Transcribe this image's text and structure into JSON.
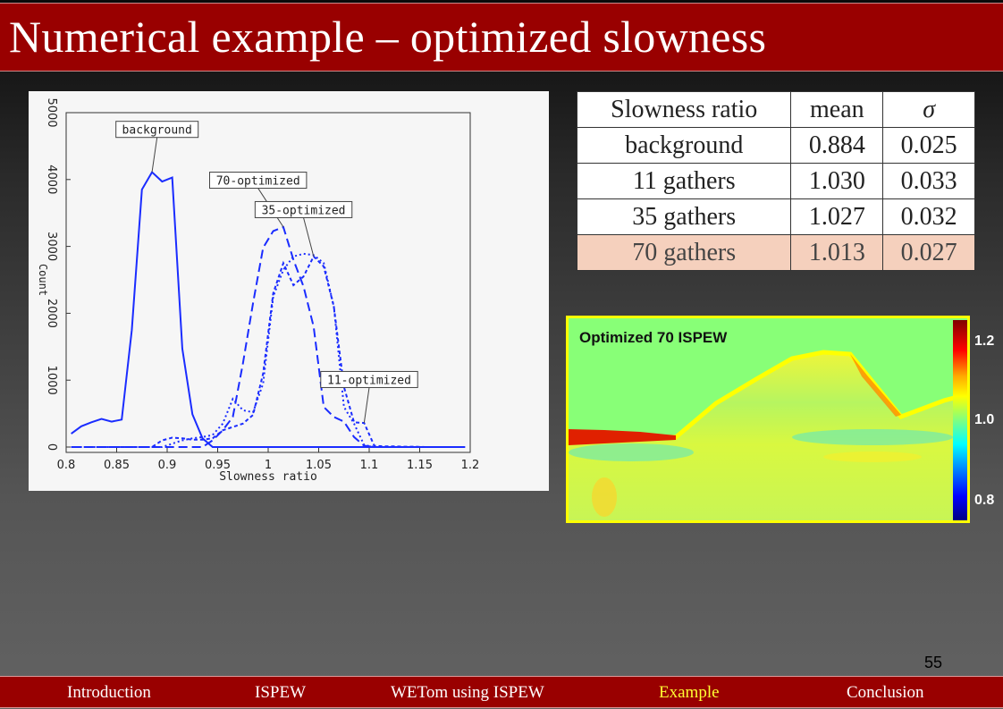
{
  "slide": {
    "title": "Numerical example – optimized slowness",
    "page_number": "55"
  },
  "table": {
    "headers": [
      "Slowness ratio",
      "mean",
      "σ"
    ],
    "rows": [
      [
        "background",
        "0.884",
        "0.025"
      ],
      [
        "11 gathers",
        "1.030",
        "0.033"
      ],
      [
        "35 gathers",
        "1.027",
        "0.032"
      ],
      [
        "70 gathers",
        "1.013",
        "0.027"
      ]
    ],
    "highlight_color": "#f5d0bd"
  },
  "velocity_panel": {
    "label": "Optimized 70 ISPEW",
    "colorbar_ticks": [
      "1.2",
      "1.0",
      "0.8"
    ]
  },
  "footer": {
    "items": [
      {
        "label": "Introduction",
        "active": false
      },
      {
        "label": "ISPEW",
        "active": false
      },
      {
        "label": "WETom using ISPEW",
        "active": false
      },
      {
        "label": "Example",
        "active": true
      },
      {
        "label": "Conclusion",
        "active": false
      }
    ],
    "active_color": "#ffff33",
    "bar_color": "#990000"
  },
  "chart_data": {
    "type": "line",
    "xlabel": "Slowness ratio",
    "ylabel": "Count",
    "xlim": [
      0.8,
      1.2
    ],
    "ylim": [
      0,
      5000
    ],
    "xticks": [
      "0.8",
      "0.85",
      "0.9",
      "0.95",
      "1",
      "1.05",
      "1.1",
      "1.15",
      "1.2"
    ],
    "yticks": [
      "0",
      "1000",
      "2000",
      "3000",
      "4000",
      "5000"
    ],
    "grid": false,
    "color": "#1a2cff",
    "x": [
      0.805,
      0.815,
      0.825,
      0.835,
      0.845,
      0.855,
      0.865,
      0.875,
      0.885,
      0.895,
      0.905,
      0.915,
      0.925,
      0.935,
      0.945,
      0.955,
      0.965,
      0.975,
      0.985,
      0.995,
      1.005,
      1.015,
      1.025,
      1.035,
      1.045,
      1.055,
      1.065,
      1.075,
      1.085,
      1.095,
      1.105,
      1.115,
      1.125,
      1.135,
      1.145,
      1.155,
      1.165,
      1.175,
      1.185,
      1.195
    ],
    "series": [
      {
        "name": "background",
        "style": "solid",
        "values": [
          200,
          310,
          370,
          420,
          380,
          410,
          1750,
          3850,
          4110,
          3970,
          4030,
          1470,
          490,
          130,
          0,
          0,
          0,
          0,
          0,
          0,
          0,
          0,
          0,
          0,
          0,
          0,
          0,
          0,
          0,
          0,
          0,
          0,
          0,
          0,
          0,
          0,
          0,
          0,
          0,
          0
        ]
      },
      {
        "name": "70-optimized",
        "style": "long-dash",
        "values": [
          0,
          0,
          0,
          0,
          0,
          0,
          0,
          0,
          0,
          0,
          0,
          0,
          0,
          0,
          100,
          250,
          450,
          1250,
          2150,
          2980,
          3230,
          3290,
          2800,
          2400,
          1800,
          600,
          450,
          380,
          150,
          20,
          0,
          0,
          0,
          0,
          0,
          0,
          0,
          0,
          0,
          0
        ]
      },
      {
        "name": "35-optimized",
        "style": "dotted",
        "values": [
          0,
          0,
          0,
          0,
          0,
          0,
          0,
          0,
          0,
          0,
          50,
          100,
          130,
          150,
          180,
          350,
          720,
          550,
          520,
          950,
          2250,
          2650,
          2850,
          2890,
          2870,
          2750,
          2100,
          600,
          350,
          30,
          0,
          0,
          0,
          0,
          0,
          0,
          0,
          0,
          0,
          0
        ]
      },
      {
        "name": "11-optimized",
        "style": "short-dash",
        "values": [
          0,
          0,
          0,
          0,
          0,
          0,
          0,
          0,
          0,
          100,
          140,
          130,
          110,
          110,
          130,
          250,
          300,
          350,
          480,
          1100,
          2300,
          2750,
          2420,
          2550,
          2850,
          2700,
          2100,
          900,
          370,
          360,
          20,
          10,
          10,
          5,
          5,
          0,
          0,
          0,
          0,
          0
        ]
      }
    ],
    "annotations": [
      "background",
      "70-optimized",
      "35-optimized",
      "11-optimized"
    ]
  }
}
